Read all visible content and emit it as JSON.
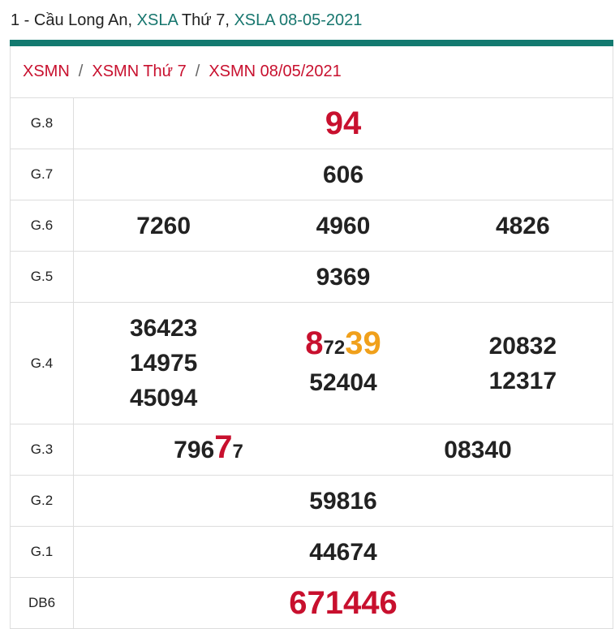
{
  "header": {
    "parts": [
      "1 - Cầu Long An,",
      "XSLA",
      "Thứ 7,",
      "XSLA 08-05-2021"
    ]
  },
  "breadcrumb": {
    "items": [
      "XSMN",
      "XSMN Thứ 7",
      "XSMN 08/05/2021"
    ],
    "separator": "/"
  },
  "table": {
    "rows": [
      {
        "label": "G.8",
        "columns": [
          [
            "94"
          ]
        ]
      },
      {
        "label": "G.7",
        "columns": [
          [
            "606"
          ]
        ]
      },
      {
        "label": "G.6",
        "columns": [
          [
            "7260"
          ],
          [
            "4960"
          ],
          [
            "4826"
          ]
        ]
      },
      {
        "label": "G.5",
        "columns": [
          [
            "9369"
          ]
        ]
      },
      {
        "label": "G.4",
        "columns": [
          [
            "36423",
            "14975",
            "45094"
          ],
          [
            [
              "8",
              "72",
              "39"
            ],
            "52404"
          ],
          [
            "20832",
            "12317"
          ]
        ]
      },
      {
        "label": "G.3",
        "columns": [
          [
            [
              "796",
              "7",
              "7"
            ]
          ],
          [
            "08340"
          ]
        ]
      },
      {
        "label": "G.2",
        "columns": [
          [
            "59816"
          ]
        ]
      },
      {
        "label": "G.1",
        "columns": [
          [
            "44674"
          ]
        ]
      },
      {
        "label": "DB6",
        "columns": [
          [
            "671446"
          ]
        ]
      }
    ]
  }
}
